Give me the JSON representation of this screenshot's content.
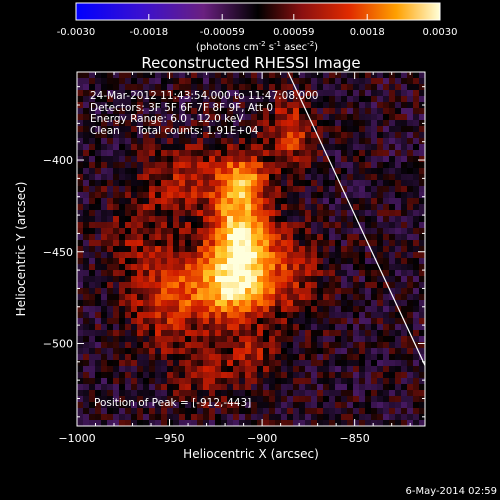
{
  "colorbar": {
    "ticks": [
      "-0.0030",
      "-0.0018",
      "-0.00059",
      "0.00059",
      "0.0018",
      "0.0030"
    ],
    "vmin": -0.003,
    "vmax": 0.003,
    "label_text": "(photons cm",
    "label_exp1": "-2",
    "label_mid": " s",
    "label_exp2": "-1",
    "label_mid2": " asec",
    "label_exp3": "-2",
    "label_end": ")"
  },
  "chart_data": {
    "type": "heatmap",
    "title": "Reconstructed RHESSI Image",
    "xlabel": "Heliocentric X (arcsec)",
    "ylabel": "Heliocentric Y (arcsec)",
    "xlim": [
      -1000,
      -812
    ],
    "ylim": [
      -545,
      -352
    ],
    "x_ticks": [
      {
        "value": -1000,
        "label": "−1000"
      },
      {
        "value": -950,
        "label": "−950"
      },
      {
        "value": -900,
        "label": "−900"
      },
      {
        "value": -850,
        "label": "−850"
      }
    ],
    "y_ticks": [
      {
        "value": -400,
        "label": "−400"
      },
      {
        "value": -450,
        "label": "−450"
      },
      {
        "value": -500,
        "label": "−500"
      }
    ],
    "limb_line": [
      [
        -886,
        -352
      ],
      [
        -812,
        -512
      ]
    ],
    "peak": [
      -912,
      -443
    ],
    "sources": [
      {
        "x": -912,
        "y": -443,
        "amp": 0.003,
        "sx": 11,
        "sy": 17
      },
      {
        "x": -919,
        "y": -470,
        "amp": 0.0021,
        "sx": 15,
        "sy": 12
      },
      {
        "x": -910,
        "y": -410,
        "amp": 0.0019,
        "sx": 9,
        "sy": 9
      },
      {
        "x": -885,
        "y": -385,
        "amp": 0.0014,
        "sx": 8,
        "sy": 12
      },
      {
        "x": -950,
        "y": -475,
        "amp": 0.0011,
        "sx": 15,
        "sy": 22
      },
      {
        "x": -940,
        "y": -410,
        "amp": 0.0009,
        "sx": 17,
        "sy": 14
      },
      {
        "x": -888,
        "y": -462,
        "amp": 0.001,
        "sx": 14,
        "sy": 16
      },
      {
        "x": -905,
        "y": -505,
        "amp": 0.0008,
        "sx": 13,
        "sy": 9
      },
      {
        "x": -930,
        "y": -520,
        "amp": 0.0006,
        "sx": 12,
        "sy": 10
      },
      {
        "x": -970,
        "y": -440,
        "amp": 0.0005,
        "sx": 12,
        "sy": 18
      }
    ],
    "annotations": {
      "time": "24-Mar-2012 11:43:54.000 to 11:47:08.000",
      "detectors": "Detectors: 3F 5F 6F 7F 8F 9F, Att 0",
      "energy": "Energy Range: 6.0 - 12.0 keV",
      "clean": "Clean     Total counts: 1.91E+04",
      "peak": "Position of Peak = [-912,-443]"
    }
  },
  "footer": {
    "date": "6-May-2014 02:59"
  }
}
